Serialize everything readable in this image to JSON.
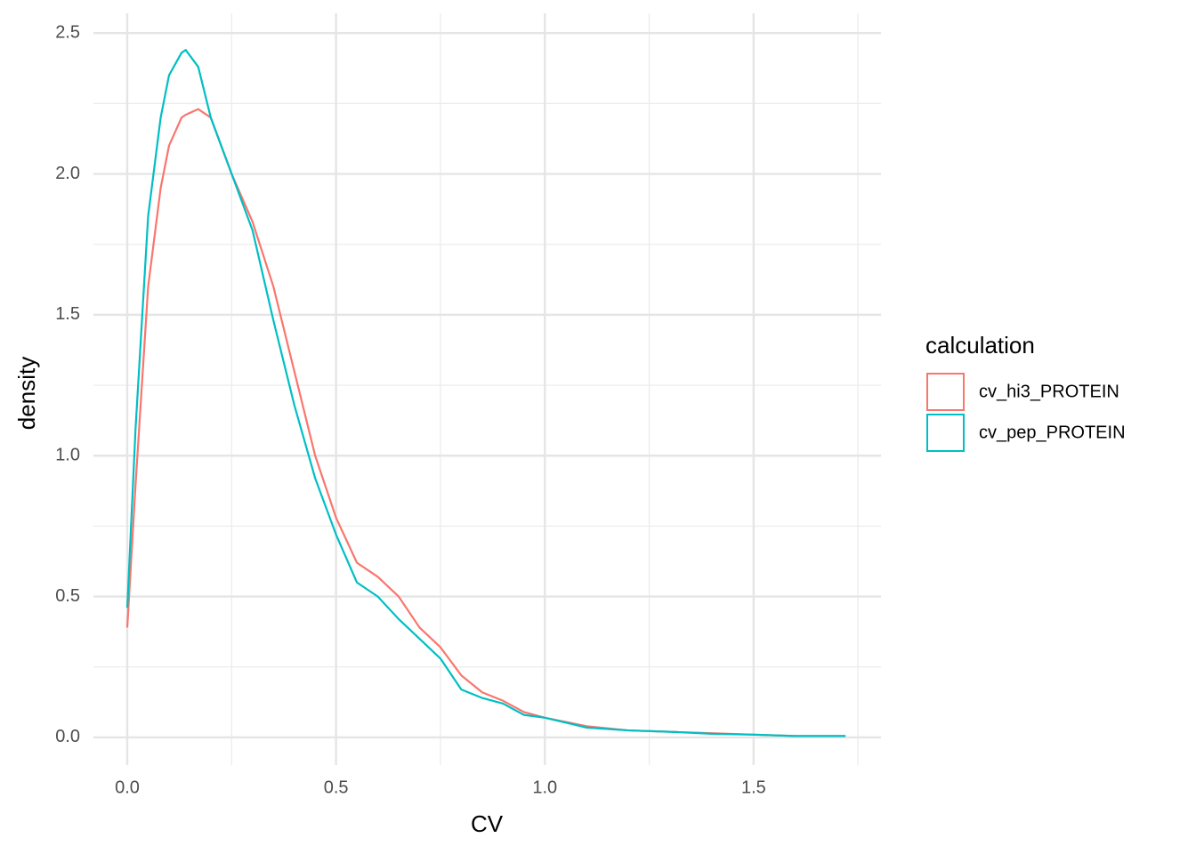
{
  "chart_data": {
    "type": "line",
    "x_label": "CV",
    "y_label": "density",
    "legend_title": "calculation",
    "x": [
      0.0,
      0.02,
      0.05,
      0.08,
      0.1,
      0.13,
      0.14,
      0.17,
      0.2,
      0.25,
      0.3,
      0.35,
      0.4,
      0.45,
      0.5,
      0.55,
      0.6,
      0.65,
      0.7,
      0.75,
      0.8,
      0.85,
      0.9,
      0.95,
      1.0,
      1.1,
      1.2,
      1.3,
      1.4,
      1.5,
      1.6,
      1.72
    ],
    "series": [
      {
        "name": "cv_hi3_PROTEIN",
        "color": "#F8766D",
        "values": [
          0.39,
          0.9,
          1.6,
          1.95,
          2.1,
          2.2,
          2.21,
          2.23,
          2.2,
          2.0,
          1.83,
          1.6,
          1.3,
          1.0,
          0.78,
          0.62,
          0.57,
          0.5,
          0.39,
          0.32,
          0.22,
          0.16,
          0.13,
          0.09,
          0.07,
          0.04,
          0.025,
          0.02,
          0.015,
          0.01,
          0.005,
          0.005
        ]
      },
      {
        "name": "cv_pep_PROTEIN",
        "color": "#00BFC4",
        "values": [
          0.46,
          1.1,
          1.85,
          2.2,
          2.35,
          2.43,
          2.44,
          2.38,
          2.2,
          2.0,
          1.8,
          1.48,
          1.18,
          0.92,
          0.72,
          0.55,
          0.5,
          0.42,
          0.35,
          0.28,
          0.17,
          0.14,
          0.12,
          0.08,
          0.07,
          0.035,
          0.025,
          0.02,
          0.013,
          0.01,
          0.005,
          0.005
        ]
      }
    ],
    "xlim": [
      -0.081,
      1.805
    ],
    "ylim": [
      -0.098,
      2.57
    ],
    "xticks": [
      {
        "value": 0,
        "label": "0.0"
      },
      0.5,
      {
        "value": 1,
        "label": "1.0"
      },
      1.5
    ],
    "yticks": [
      {
        "value": 0,
        "label": "0.0"
      },
      0.5,
      {
        "value": 1,
        "label": "1.0"
      },
      1.5,
      {
        "value": 2,
        "label": "2.0"
      },
      2.5
    ],
    "x_minor_ticks": [
      0.25,
      0.75,
      1.25,
      1.75
    ],
    "y_minor_ticks": [
      0.25,
      0.75,
      1.25,
      1.75,
      2.25
    ],
    "grid": true,
    "legend_position": "right"
  }
}
